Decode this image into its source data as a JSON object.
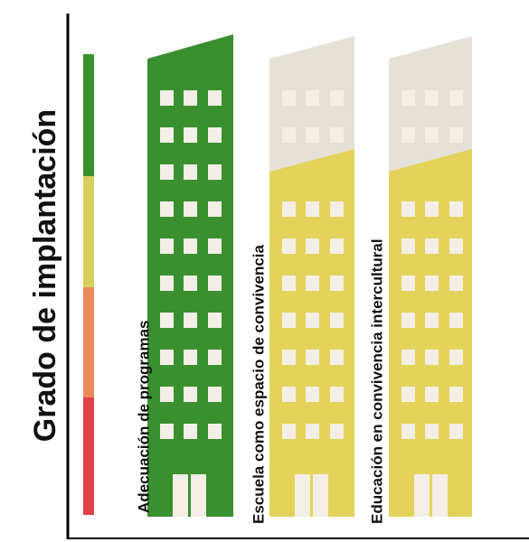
{
  "axis_title": "Grado de implantación",
  "buildings": [
    {
      "label": "Adecuación de programas"
    },
    {
      "label": "Escuela como espacio de convivencia"
    },
    {
      "label": "Educación en convivencia intercultural"
    }
  ]
}
